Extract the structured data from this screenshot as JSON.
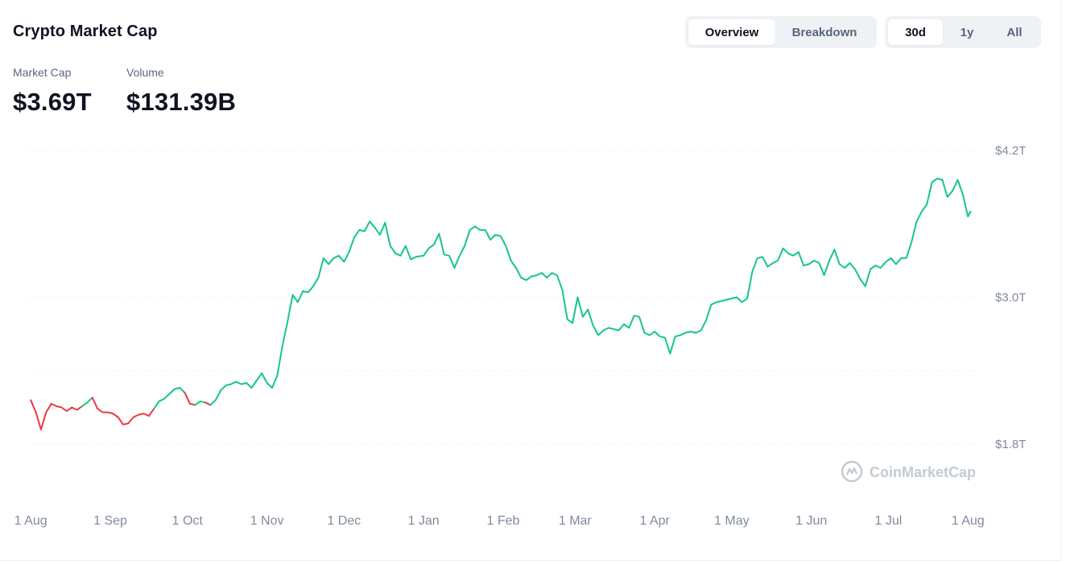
{
  "header": {
    "title": "Crypto Market Cap",
    "view_tabs": [
      {
        "label": "Overview",
        "active": true
      },
      {
        "label": "Breakdown",
        "active": false
      }
    ],
    "range_tabs": [
      {
        "label": "30d",
        "active": true
      },
      {
        "label": "1y",
        "active": false
      },
      {
        "label": "All",
        "active": false
      }
    ]
  },
  "stats": {
    "market_cap": {
      "label": "Market Cap",
      "value": "$3.69T"
    },
    "volume": {
      "label": "Volume",
      "value": "$131.39B"
    }
  },
  "watermark": "CoinMarketCap",
  "colors": {
    "up": "#16c784",
    "down": "#ea3943",
    "grid": "#e6e9ee",
    "axis_text": "#808a9d"
  },
  "chart_data": {
    "type": "line",
    "title": "Crypto Market Cap",
    "x_unit": "date",
    "xlim": [
      "2024-07-31",
      "2025-08-05"
    ],
    "ylim": [
      1.6,
      4.3
    ],
    "y_ticks": [
      {
        "value": 4.2,
        "label": "$4.2T"
      },
      {
        "value": 3.0,
        "label": "$3.0T"
      },
      {
        "value": 1.8,
        "label": "$1.8T"
      }
    ],
    "gridlines": [
      1.8,
      2.4,
      3.0,
      3.6,
      4.2
    ],
    "x_ticks": [
      {
        "date": "2024-08-01",
        "label": "1 Aug"
      },
      {
        "date": "2024-09-01",
        "label": "1 Sep"
      },
      {
        "date": "2024-10-01",
        "label": "1 Oct"
      },
      {
        "date": "2024-11-01",
        "label": "1 Nov"
      },
      {
        "date": "2024-12-01",
        "label": "1 Dec"
      },
      {
        "date": "2025-01-01",
        "label": "1 Jan"
      },
      {
        "date": "2025-02-01",
        "label": "1 Feb"
      },
      {
        "date": "2025-03-01",
        "label": "1 Mar"
      },
      {
        "date": "2025-04-01",
        "label": "1 Apr"
      },
      {
        "date": "2025-05-01",
        "label": "1 May"
      },
      {
        "date": "2025-06-01",
        "label": "1 Jun"
      },
      {
        "date": "2025-07-01",
        "label": "1 Jul"
      },
      {
        "date": "2025-08-01",
        "label": "1 Aug"
      }
    ],
    "baseline": 2.14,
    "series": [
      {
        "unit": "trillion USD",
        "points": [
          [
            "2024-08-01",
            2.16
          ],
          [
            "2024-08-03",
            2.06
          ],
          [
            "2024-08-05",
            1.92
          ],
          [
            "2024-08-07",
            2.06
          ],
          [
            "2024-08-09",
            2.13
          ],
          [
            "2024-08-11",
            2.11
          ],
          [
            "2024-08-13",
            2.1
          ],
          [
            "2024-08-15",
            2.07
          ],
          [
            "2024-08-17",
            2.1
          ],
          [
            "2024-08-19",
            2.08
          ],
          [
            "2024-08-21",
            2.11
          ],
          [
            "2024-08-23",
            2.14
          ],
          [
            "2024-08-25",
            2.18
          ],
          [
            "2024-08-27",
            2.09
          ],
          [
            "2024-08-29",
            2.06
          ],
          [
            "2024-08-31",
            2.06
          ],
          [
            "2024-09-02",
            2.05
          ],
          [
            "2024-09-04",
            2.02
          ],
          [
            "2024-09-06",
            1.96
          ],
          [
            "2024-09-08",
            1.97
          ],
          [
            "2024-09-10",
            2.02
          ],
          [
            "2024-09-12",
            2.04
          ],
          [
            "2024-09-14",
            2.05
          ],
          [
            "2024-09-16",
            2.03
          ],
          [
            "2024-09-18",
            2.09
          ],
          [
            "2024-09-20",
            2.15
          ],
          [
            "2024-09-22",
            2.17
          ],
          [
            "2024-09-24",
            2.21
          ],
          [
            "2024-09-26",
            2.25
          ],
          [
            "2024-09-28",
            2.26
          ],
          [
            "2024-09-30",
            2.22
          ],
          [
            "2024-10-02",
            2.13
          ],
          [
            "2024-10-04",
            2.12
          ],
          [
            "2024-10-06",
            2.15
          ],
          [
            "2024-10-08",
            2.14
          ],
          [
            "2024-10-10",
            2.12
          ],
          [
            "2024-10-12",
            2.16
          ],
          [
            "2024-10-14",
            2.24
          ],
          [
            "2024-10-16",
            2.28
          ],
          [
            "2024-10-18",
            2.29
          ],
          [
            "2024-10-20",
            2.31
          ],
          [
            "2024-10-22",
            2.29
          ],
          [
            "2024-10-24",
            2.3
          ],
          [
            "2024-10-26",
            2.26
          ],
          [
            "2024-10-28",
            2.32
          ],
          [
            "2024-10-30",
            2.38
          ],
          [
            "2024-11-01",
            2.3
          ],
          [
            "2024-11-03",
            2.26
          ],
          [
            "2024-11-05",
            2.36
          ],
          [
            "2024-11-07",
            2.6
          ],
          [
            "2024-11-09",
            2.8
          ],
          [
            "2024-11-11",
            3.02
          ],
          [
            "2024-11-13",
            2.96
          ],
          [
            "2024-11-15",
            3.05
          ],
          [
            "2024-11-17",
            3.04
          ],
          [
            "2024-11-19",
            3.09
          ],
          [
            "2024-11-21",
            3.16
          ],
          [
            "2024-11-23",
            3.32
          ],
          [
            "2024-11-25",
            3.27
          ],
          [
            "2024-11-27",
            3.32
          ],
          [
            "2024-11-29",
            3.34
          ],
          [
            "2024-12-01",
            3.29
          ],
          [
            "2024-12-03",
            3.37
          ],
          [
            "2024-12-05",
            3.49
          ],
          [
            "2024-12-07",
            3.55
          ],
          [
            "2024-12-09",
            3.54
          ],
          [
            "2024-12-11",
            3.62
          ],
          [
            "2024-12-13",
            3.57
          ],
          [
            "2024-12-15",
            3.51
          ],
          [
            "2024-12-17",
            3.61
          ],
          [
            "2024-12-19",
            3.42
          ],
          [
            "2024-12-21",
            3.36
          ],
          [
            "2024-12-23",
            3.34
          ],
          [
            "2024-12-25",
            3.42
          ],
          [
            "2024-12-27",
            3.31
          ],
          [
            "2024-12-29",
            3.33
          ],
          [
            "2025-01-01",
            3.34
          ],
          [
            "2025-01-03",
            3.4
          ],
          [
            "2025-01-05",
            3.43
          ],
          [
            "2025-01-07",
            3.52
          ],
          [
            "2025-01-09",
            3.35
          ],
          [
            "2025-01-11",
            3.34
          ],
          [
            "2025-01-13",
            3.24
          ],
          [
            "2025-01-15",
            3.34
          ],
          [
            "2025-01-17",
            3.42
          ],
          [
            "2025-01-19",
            3.55
          ],
          [
            "2025-01-21",
            3.58
          ],
          [
            "2025-01-23",
            3.55
          ],
          [
            "2025-01-25",
            3.55
          ],
          [
            "2025-01-27",
            3.47
          ],
          [
            "2025-01-29",
            3.51
          ],
          [
            "2025-01-31",
            3.5
          ],
          [
            "2025-02-02",
            3.42
          ],
          [
            "2025-02-04",
            3.3
          ],
          [
            "2025-02-06",
            3.24
          ],
          [
            "2025-02-08",
            3.16
          ],
          [
            "2025-02-10",
            3.14
          ],
          [
            "2025-02-12",
            3.17
          ],
          [
            "2025-02-14",
            3.18
          ],
          [
            "2025-02-16",
            3.2
          ],
          [
            "2025-02-18",
            3.16
          ],
          [
            "2025-02-20",
            3.2
          ],
          [
            "2025-02-22",
            3.18
          ],
          [
            "2025-02-24",
            3.06
          ],
          [
            "2025-02-26",
            2.82
          ],
          [
            "2025-02-28",
            2.79
          ],
          [
            "2025-03-02",
            3.0
          ],
          [
            "2025-03-04",
            2.84
          ],
          [
            "2025-03-06",
            2.9
          ],
          [
            "2025-03-08",
            2.77
          ],
          [
            "2025-03-10",
            2.69
          ],
          [
            "2025-03-12",
            2.73
          ],
          [
            "2025-03-14",
            2.75
          ],
          [
            "2025-03-16",
            2.74
          ],
          [
            "2025-03-18",
            2.73
          ],
          [
            "2025-03-20",
            2.78
          ],
          [
            "2025-03-22",
            2.75
          ],
          [
            "2025-03-24",
            2.85
          ],
          [
            "2025-03-26",
            2.84
          ],
          [
            "2025-03-28",
            2.71
          ],
          [
            "2025-03-30",
            2.69
          ],
          [
            "2025-04-01",
            2.72
          ],
          [
            "2025-04-03",
            2.68
          ],
          [
            "2025-04-05",
            2.67
          ],
          [
            "2025-04-07",
            2.54
          ],
          [
            "2025-04-09",
            2.68
          ],
          [
            "2025-04-11",
            2.69
          ],
          [
            "2025-04-13",
            2.71
          ],
          [
            "2025-04-15",
            2.72
          ],
          [
            "2025-04-17",
            2.71
          ],
          [
            "2025-04-19",
            2.73
          ],
          [
            "2025-04-21",
            2.81
          ],
          [
            "2025-04-23",
            2.94
          ],
          [
            "2025-04-25",
            2.96
          ],
          [
            "2025-04-27",
            2.97
          ],
          [
            "2025-04-29",
            2.98
          ],
          [
            "2025-05-01",
            2.99
          ],
          [
            "2025-05-03",
            3.0
          ],
          [
            "2025-05-05",
            2.96
          ],
          [
            "2025-05-07",
            2.99
          ],
          [
            "2025-05-09",
            3.21
          ],
          [
            "2025-05-11",
            3.32
          ],
          [
            "2025-05-13",
            3.33
          ],
          [
            "2025-05-15",
            3.25
          ],
          [
            "2025-05-17",
            3.28
          ],
          [
            "2025-05-19",
            3.3
          ],
          [
            "2025-05-21",
            3.4
          ],
          [
            "2025-05-23",
            3.36
          ],
          [
            "2025-05-25",
            3.34
          ],
          [
            "2025-05-27",
            3.37
          ],
          [
            "2025-05-29",
            3.26
          ],
          [
            "2025-05-31",
            3.27
          ],
          [
            "2025-06-02",
            3.3
          ],
          [
            "2025-06-04",
            3.28
          ],
          [
            "2025-06-06",
            3.18
          ],
          [
            "2025-06-08",
            3.3
          ],
          [
            "2025-06-10",
            3.39
          ],
          [
            "2025-06-12",
            3.27
          ],
          [
            "2025-06-14",
            3.24
          ],
          [
            "2025-06-16",
            3.28
          ],
          [
            "2025-06-18",
            3.23
          ],
          [
            "2025-06-20",
            3.15
          ],
          [
            "2025-06-22",
            3.09
          ],
          [
            "2025-06-24",
            3.23
          ],
          [
            "2025-06-26",
            3.26
          ],
          [
            "2025-06-28",
            3.24
          ],
          [
            "2025-06-30",
            3.29
          ],
          [
            "2025-07-02",
            3.32
          ],
          [
            "2025-07-04",
            3.27
          ],
          [
            "2025-07-06",
            3.32
          ],
          [
            "2025-07-08",
            3.32
          ],
          [
            "2025-07-10",
            3.45
          ],
          [
            "2025-07-12",
            3.62
          ],
          [
            "2025-07-14",
            3.7
          ],
          [
            "2025-07-16",
            3.76
          ],
          [
            "2025-07-18",
            3.94
          ],
          [
            "2025-07-20",
            3.97
          ],
          [
            "2025-07-22",
            3.96
          ],
          [
            "2025-07-24",
            3.82
          ],
          [
            "2025-07-26",
            3.87
          ],
          [
            "2025-07-28",
            3.96
          ],
          [
            "2025-07-30",
            3.84
          ],
          [
            "2025-08-01",
            3.66
          ],
          [
            "2025-08-02",
            3.7
          ]
        ]
      }
    ]
  }
}
